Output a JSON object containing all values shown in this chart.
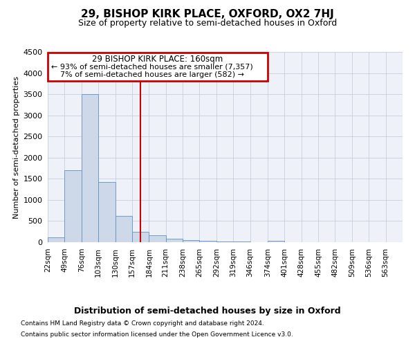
{
  "title1": "29, BISHOP KIRK PLACE, OXFORD, OX2 7HJ",
  "title2": "Size of property relative to semi-detached houses in Oxford",
  "xlabel": "Distribution of semi-detached houses by size in Oxford",
  "ylabel": "Number of semi-detached properties",
  "property_size": 157,
  "property_label": "29 BISHOP KIRK PLACE: 160sqm",
  "pct_smaller": 93,
  "count_smaller": 7357,
  "pct_larger": 7,
  "count_larger": 582,
  "bar_color": "#cdd9e8",
  "bar_edge_color": "#6090c0",
  "vline_color": "#cc0000",
  "annotation_box_color": "#cc0000",
  "background_color": "#eef1f8",
  "grid_color": "#c0c8d8",
  "bin_labels": [
    "22sqm",
    "49sqm",
    "76sqm",
    "103sqm",
    "130sqm",
    "157sqm",
    "184sqm",
    "211sqm",
    "238sqm",
    "265sqm",
    "292sqm",
    "319sqm",
    "346sqm",
    "374sqm",
    "401sqm",
    "428sqm",
    "455sqm",
    "482sqm",
    "509sqm",
    "536sqm",
    "563sqm"
  ],
  "bin_edges": [
    22,
    49,
    76,
    103,
    130,
    157,
    184,
    211,
    238,
    265,
    292,
    319,
    346,
    374,
    401,
    428,
    455,
    482,
    509,
    536,
    563
  ],
  "bar_heights": [
    120,
    1700,
    3500,
    1430,
    620,
    250,
    170,
    90,
    50,
    30,
    20,
    10,
    5,
    40,
    0,
    0,
    0,
    0,
    0,
    0
  ],
  "ylim": [
    0,
    4500
  ],
  "yticks": [
    0,
    500,
    1000,
    1500,
    2000,
    2500,
    3000,
    3500,
    4000,
    4500
  ],
  "footnote1": "Contains HM Land Registry data © Crown copyright and database right 2024.",
  "footnote2": "Contains public sector information licensed under the Open Government Licence v3.0."
}
